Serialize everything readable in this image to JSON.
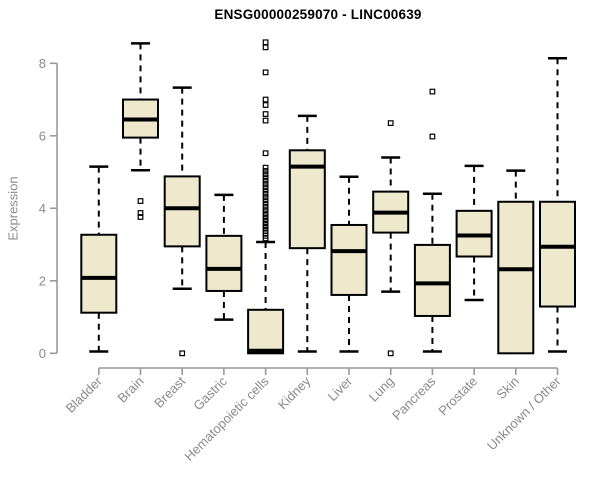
{
  "chart_data": {
    "type": "boxplot",
    "title": "ENSG00000259070 - LINC00639",
    "ylabel": "Expression",
    "ylim": [
      0,
      8
    ],
    "yticks": [
      0,
      2,
      4,
      6,
      8
    ],
    "grid": false,
    "legend": "none",
    "categories": [
      "Bladder",
      "Brain",
      "Breast",
      "Gastric",
      "Hematopoietic cells",
      "Kidney",
      "Liver",
      "Lung",
      "Pancreas",
      "Prostate",
      "Skin",
      "Unknown / Other"
    ],
    "series": [
      {
        "name": "Bladder",
        "low": 0.05,
        "q1": 1.12,
        "median": 2.08,
        "q3": 3.27,
        "high": 5.15,
        "outliers": []
      },
      {
        "name": "Brain",
        "low": 5.05,
        "q1": 5.95,
        "median": 6.45,
        "q3": 7.0,
        "high": 8.55,
        "outliers": [
          4.2,
          3.87,
          3.76
        ]
      },
      {
        "name": "Breast",
        "low": 1.78,
        "q1": 2.95,
        "median": 4.0,
        "q3": 4.88,
        "high": 7.33,
        "outliers": [
          0.0
        ]
      },
      {
        "name": "Gastric",
        "low": 0.93,
        "q1": 1.72,
        "median": 2.33,
        "q3": 3.24,
        "high": 4.37,
        "outliers": []
      },
      {
        "name": "Hematopoietic cells",
        "low": 0.0,
        "q1": 0.0,
        "median": 0.07,
        "q3": 1.2,
        "high": 3.07,
        "outliers": [
          8.58,
          8.44,
          7.75,
          7.0,
          6.85,
          6.6,
          6.42,
          5.52,
          5.12,
          5.03,
          4.94,
          4.85,
          4.76,
          4.67,
          4.58,
          4.49,
          4.4,
          4.31,
          4.22,
          4.13,
          4.04,
          3.95,
          3.86,
          3.78,
          3.7,
          3.62,
          3.54,
          3.46,
          3.38,
          3.31,
          3.24,
          3.17
        ]
      },
      {
        "name": "Kidney",
        "low": 0.05,
        "q1": 2.9,
        "median": 5.15,
        "q3": 5.6,
        "high": 6.55,
        "outliers": []
      },
      {
        "name": "Liver",
        "low": 0.05,
        "q1": 1.61,
        "median": 2.82,
        "q3": 3.54,
        "high": 4.87,
        "outliers": []
      },
      {
        "name": "Lung",
        "low": 1.7,
        "q1": 3.33,
        "median": 3.88,
        "q3": 4.46,
        "high": 5.4,
        "outliers": [
          6.35,
          0.0
        ]
      },
      {
        "name": "Pancreas",
        "low": 0.05,
        "q1": 1.03,
        "median": 1.93,
        "q3": 2.99,
        "high": 4.4,
        "outliers": [
          7.22,
          5.98
        ]
      },
      {
        "name": "Prostate",
        "low": 1.47,
        "q1": 2.67,
        "median": 3.25,
        "q3": 3.93,
        "high": 5.17,
        "outliers": []
      },
      {
        "name": "Skin",
        "low": 0.0,
        "q1": 0.0,
        "median": 2.32,
        "q3": 4.18,
        "high": 5.04,
        "outliers": []
      },
      {
        "name": "Unknown / Other",
        "low": 0.05,
        "q1": 1.29,
        "median": 2.94,
        "q3": 4.18,
        "high": 8.14,
        "outliers": []
      }
    ],
    "box_fill": "#eee8cd",
    "box_border": "#000000",
    "median_color": "#000000",
    "whisker_color": "#000000",
    "outlier_color": "#000000",
    "axis_color": "#999999",
    "label_color": "#8a8a8a",
    "title_color": "#000000"
  }
}
